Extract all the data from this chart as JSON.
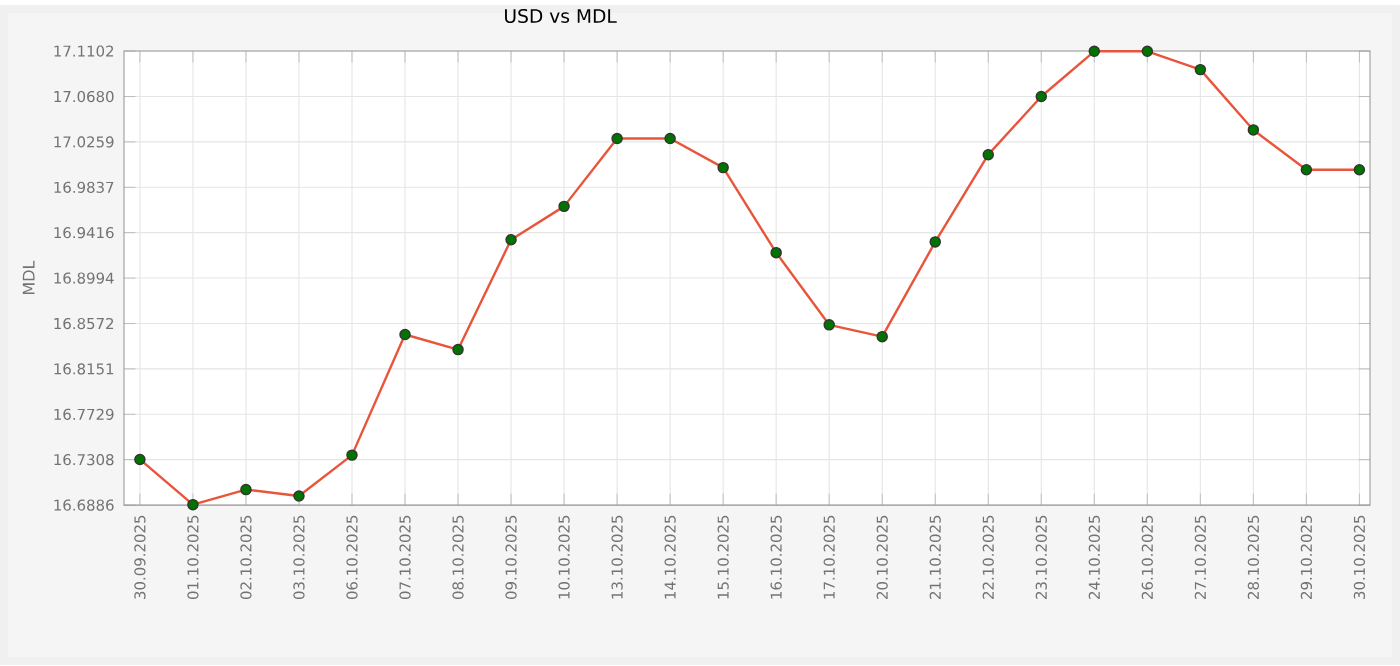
{
  "chart_data": {
    "type": "line",
    "title": "USD vs MDL",
    "ylabel": "MDL",
    "categories": [
      "30.09.2025",
      "01.10.2025",
      "02.10.2025",
      "03.10.2025",
      "06.10.2025",
      "07.10.2025",
      "08.10.2025",
      "09.10.2025",
      "10.10.2025",
      "13.10.2025",
      "14.10.2025",
      "15.10.2025",
      "16.10.2025",
      "17.10.2025",
      "20.10.2025",
      "21.10.2025",
      "22.10.2025",
      "23.10.2025",
      "24.10.2025",
      "26.10.2025",
      "27.10.2025",
      "28.10.2025",
      "29.10.2025",
      "30.10.2025"
    ],
    "series": [
      {
        "color": "#e8553a",
        "values": [
          16.731,
          16.689,
          16.703,
          16.697,
          16.735,
          16.847,
          16.833,
          16.935,
          16.966,
          17.029,
          17.029,
          17.002,
          16.923,
          16.856,
          16.845,
          16.933,
          17.014,
          17.068,
          17.11,
          17.11,
          17.093,
          17.037,
          17.0,
          17.0
        ]
      }
    ],
    "ylim": [
      16.6886,
      17.1102
    ],
    "yticks": [
      {
        "value": 16.6886,
        "label": "16.6886"
      },
      {
        "value": 16.7308,
        "label": "16.7308"
      },
      {
        "value": 16.7729,
        "label": "16.7729"
      },
      {
        "value": 16.8151,
        "label": "16.8151"
      },
      {
        "value": 16.8572,
        "label": "16.8572"
      },
      {
        "value": 16.8994,
        "label": "16.8994"
      },
      {
        "value": 16.9416,
        "label": "16.9416"
      },
      {
        "value": 16.9837,
        "label": "16.9837"
      },
      {
        "value": 17.0259,
        "label": "17.0259"
      },
      {
        "value": 17.068,
        "label": "17.0680"
      },
      {
        "value": 17.1102,
        "label": "17.1102"
      }
    ],
    "grid": true,
    "marker": "circle",
    "line_style": "solid"
  }
}
